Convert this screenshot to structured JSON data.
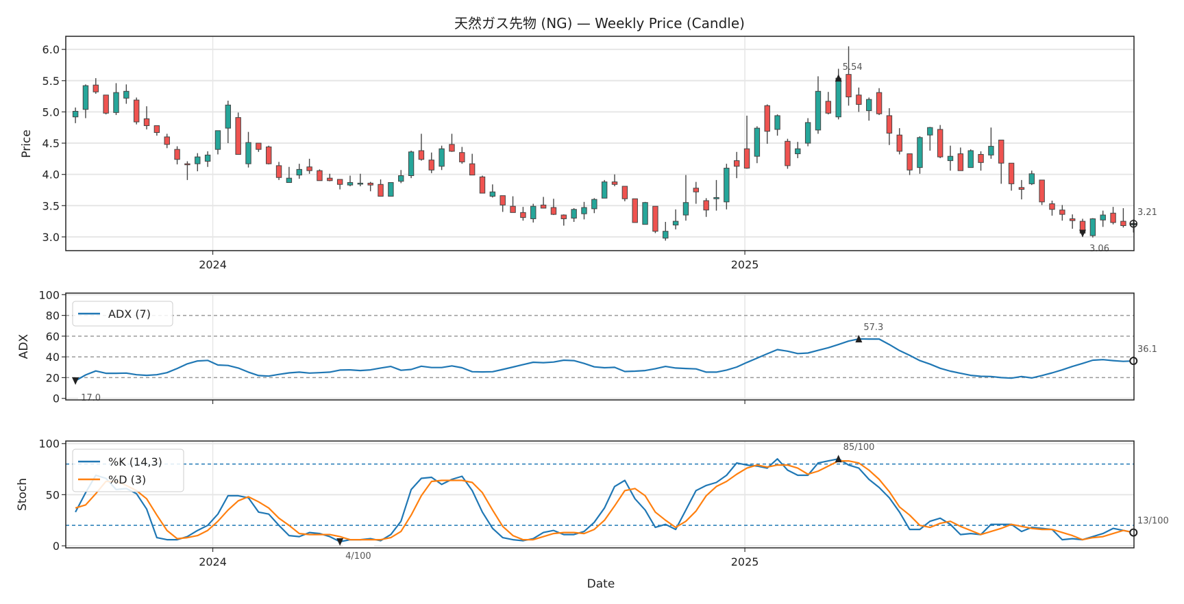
{
  "chart_data": [
    {
      "type": "candlestick",
      "title": "天然ガス先物 (NG) — Weekly Price (Candle)",
      "ylabel": "Price",
      "xlabel": "",
      "ylim": [
        2.78,
        6.21
      ],
      "yticks": [
        "3.0",
        "3.5",
        "4.0",
        "4.5",
        "5.0",
        "5.5",
        "6.0"
      ],
      "ytick_values": [
        3.0,
        3.5,
        4.0,
        4.5,
        5.0,
        5.5,
        6.0
      ],
      "xticks": [
        {
          "label": "2024",
          "index": 13.5
        },
        {
          "label": "2025",
          "index": 65.8
        }
      ],
      "grid": true,
      "colors": {
        "up": "#26a69a",
        "down": "#ef5350",
        "edge": "#444444"
      },
      "ohlc": [
        [
          4.92,
          5.07,
          4.82,
          5.01
        ],
        [
          5.04,
          5.44,
          4.9,
          5.42
        ],
        [
          5.43,
          5.54,
          5.29,
          5.32
        ],
        [
          5.27,
          5.27,
          4.96,
          4.98
        ],
        [
          4.99,
          5.46,
          4.95,
          5.31
        ],
        [
          5.22,
          5.44,
          5.13,
          5.33
        ],
        [
          5.19,
          5.23,
          4.8,
          4.84
        ],
        [
          4.89,
          5.09,
          4.72,
          4.78
        ],
        [
          4.78,
          4.78,
          4.62,
          4.67
        ],
        [
          4.6,
          4.65,
          4.42,
          4.48
        ],
        [
          4.4,
          4.45,
          4.16,
          4.24
        ],
        [
          4.17,
          4.21,
          3.91,
          4.16
        ],
        [
          4.17,
          4.34,
          4.05,
          4.28
        ],
        [
          4.21,
          4.37,
          4.12,
          4.31
        ],
        [
          4.4,
          4.7,
          4.32,
          4.7
        ],
        [
          4.74,
          5.18,
          4.5,
          5.11
        ],
        [
          4.91,
          4.99,
          4.32,
          4.32
        ],
        [
          4.17,
          4.68,
          4.11,
          4.51
        ],
        [
          4.5,
          4.5,
          4.36,
          4.4
        ],
        [
          4.44,
          4.46,
          4.16,
          4.17
        ],
        [
          4.14,
          4.2,
          3.91,
          3.95
        ],
        [
          3.87,
          4.12,
          3.87,
          3.94
        ],
        [
          3.99,
          4.17,
          3.93,
          4.08
        ],
        [
          4.12,
          4.25,
          4.01,
          4.06
        ],
        [
          4.06,
          4.08,
          3.9,
          3.9
        ],
        [
          3.94,
          4.01,
          3.89,
          3.9
        ],
        [
          3.92,
          3.92,
          3.76,
          3.84
        ],
        [
          3.83,
          3.98,
          3.81,
          3.87
        ],
        [
          3.85,
          4.01,
          3.81,
          3.86
        ],
        [
          3.86,
          3.88,
          3.73,
          3.83
        ],
        [
          3.84,
          3.92,
          3.65,
          3.65
        ],
        [
          3.65,
          3.87,
          3.65,
          3.87
        ],
        [
          3.89,
          4.07,
          3.86,
          3.98
        ],
        [
          3.98,
          4.38,
          3.94,
          4.36
        ],
        [
          4.38,
          4.65,
          4.22,
          4.24
        ],
        [
          4.23,
          4.35,
          4.02,
          4.07
        ],
        [
          4.13,
          4.46,
          4.07,
          4.41
        ],
        [
          4.48,
          4.65,
          4.36,
          4.37
        ],
        [
          4.35,
          4.44,
          4.17,
          4.2
        ],
        [
          4.17,
          4.33,
          3.99,
          3.99
        ],
        [
          3.96,
          3.98,
          3.7,
          3.7
        ],
        [
          3.65,
          3.84,
          3.63,
          3.72
        ],
        [
          3.66,
          3.66,
          3.4,
          3.51
        ],
        [
          3.49,
          3.65,
          3.39,
          3.39
        ],
        [
          3.39,
          3.48,
          3.26,
          3.31
        ],
        [
          3.29,
          3.53,
          3.23,
          3.49
        ],
        [
          3.51,
          3.64,
          3.46,
          3.46
        ],
        [
          3.47,
          3.61,
          3.35,
          3.36
        ],
        [
          3.35,
          3.36,
          3.18,
          3.29
        ],
        [
          3.3,
          3.46,
          3.24,
          3.44
        ],
        [
          3.37,
          3.56,
          3.28,
          3.47
        ],
        [
          3.45,
          3.62,
          3.38,
          3.6
        ],
        [
          3.62,
          3.91,
          3.62,
          3.88
        ],
        [
          3.88,
          4.0,
          3.81,
          3.84
        ],
        [
          3.81,
          3.81,
          3.57,
          3.61
        ],
        [
          3.61,
          3.61,
          3.23,
          3.23
        ],
        [
          3.2,
          3.56,
          3.2,
          3.55
        ],
        [
          3.49,
          3.49,
          3.06,
          3.09
        ],
        [
          2.98,
          3.24,
          2.94,
          3.09
        ],
        [
          3.19,
          3.44,
          3.12,
          3.25
        ],
        [
          3.35,
          3.99,
          3.26,
          3.55
        ],
        [
          3.78,
          3.88,
          3.53,
          3.72
        ],
        [
          3.58,
          3.62,
          3.32,
          3.43
        ],
        [
          3.61,
          3.91,
          3.42,
          3.63
        ],
        [
          3.56,
          4.17,
          3.44,
          4.1
        ],
        [
          4.22,
          4.36,
          3.94,
          4.13
        ],
        [
          4.41,
          4.94,
          4.09,
          4.1
        ],
        [
          4.29,
          4.77,
          4.18,
          4.74
        ],
        [
          5.1,
          5.12,
          4.49,
          4.69
        ],
        [
          4.72,
          4.96,
          4.62,
          4.94
        ],
        [
          4.53,
          4.57,
          4.09,
          4.14
        ],
        [
          4.33,
          4.52,
          4.26,
          4.41
        ],
        [
          4.5,
          4.9,
          4.45,
          4.83
        ],
        [
          4.71,
          5.57,
          4.65,
          5.33
        ],
        [
          5.17,
          5.32,
          4.96,
          4.98
        ],
        [
          4.92,
          5.69,
          4.88,
          5.54
        ],
        [
          5.6,
          6.05,
          5.1,
          5.24
        ],
        [
          5.27,
          5.39,
          5.0,
          5.12
        ],
        [
          5.02,
          5.23,
          4.86,
          5.2
        ],
        [
          5.31,
          5.38,
          4.95,
          4.97
        ],
        [
          4.94,
          5.06,
          4.47,
          4.66
        ],
        [
          4.63,
          4.74,
          4.32,
          4.37
        ],
        [
          4.33,
          4.33,
          3.99,
          4.07
        ],
        [
          4.11,
          4.61,
          4.01,
          4.59
        ],
        [
          4.63,
          4.76,
          4.38,
          4.75
        ],
        [
          4.72,
          4.79,
          4.26,
          4.28
        ],
        [
          4.22,
          4.46,
          4.06,
          4.29
        ],
        [
          4.33,
          4.43,
          4.06,
          4.06
        ],
        [
          4.11,
          4.4,
          4.11,
          4.38
        ],
        [
          4.32,
          4.37,
          4.06,
          4.19
        ],
        [
          4.31,
          4.75,
          4.25,
          4.45
        ],
        [
          4.55,
          4.55,
          3.85,
          4.18
        ],
        [
          4.18,
          4.18,
          3.74,
          3.85
        ],
        [
          3.79,
          3.91,
          3.6,
          3.76
        ],
        [
          3.85,
          4.06,
          3.83,
          4.01
        ],
        [
          3.91,
          3.91,
          3.51,
          3.56
        ],
        [
          3.53,
          3.58,
          3.34,
          3.44
        ],
        [
          3.43,
          3.51,
          3.26,
          3.36
        ],
        [
          3.29,
          3.36,
          3.13,
          3.26
        ],
        [
          3.25,
          3.29,
          3.0,
          3.06
        ],
        [
          3.02,
          3.3,
          2.99,
          3.29
        ],
        [
          3.27,
          3.42,
          3.16,
          3.35
        ],
        [
          3.38,
          3.48,
          3.2,
          3.23
        ],
        [
          3.25,
          3.46,
          3.15,
          3.18
        ],
        [
          3.2,
          3.28,
          3.07,
          3.21
        ]
      ],
      "annotations": [
        {
          "kind": "max",
          "index": 75,
          "value": 5.54,
          "label": "5.54"
        },
        {
          "kind": "min",
          "index": 99,
          "value": 3.06,
          "label": "3.06"
        },
        {
          "kind": "last",
          "index": 104,
          "value": 3.21,
          "label": "3.21"
        }
      ]
    },
    {
      "type": "line",
      "ylabel": "ADX",
      "ylim": [
        -1.5,
        101.5
      ],
      "yticks": [
        "0",
        "20",
        "40",
        "60",
        "80",
        "100"
      ],
      "ytick_values": [
        0,
        20,
        40,
        60,
        80,
        100
      ],
      "reference_lines": [
        20,
        40,
        60,
        80
      ],
      "legend": "top-left",
      "series": [
        {
          "name": "ADX (7)",
          "color": "#1f77b4",
          "values": [
            17.0,
            22.6,
            26.4,
            24.2,
            24.2,
            24.4,
            22.8,
            22.2,
            22.8,
            24.8,
            28.8,
            33.3,
            36.1,
            36.6,
            32.2,
            31.7,
            29.3,
            25.3,
            22.0,
            21.5,
            23.1,
            24.6,
            25.3,
            24.4,
            24.8,
            25.3,
            27.3,
            27.5,
            26.8,
            27.5,
            29.3,
            30.8,
            27.1,
            27.9,
            31.0,
            29.7,
            29.7,
            31.3,
            29.5,
            25.7,
            25.5,
            25.7,
            27.9,
            30.2,
            32.6,
            34.8,
            34.4,
            35.0,
            36.8,
            36.4,
            33.7,
            30.4,
            29.5,
            29.9,
            25.9,
            26.2,
            26.8,
            28.6,
            30.8,
            29.3,
            28.8,
            28.4,
            25.3,
            25.3,
            27.3,
            30.2,
            34.6,
            38.8,
            43.0,
            47.0,
            45.5,
            43.2,
            43.7,
            46.3,
            48.8,
            51.9,
            55.2,
            57.3,
            57.2,
            57.2,
            51.9,
            46.1,
            41.5,
            36.4,
            33.0,
            29.0,
            26.2,
            24.2,
            22.2,
            21.3,
            21.1,
            20.0,
            19.5,
            21.1,
            19.7,
            22.0,
            24.6,
            27.5,
            30.8,
            33.7,
            36.8,
            37.3,
            36.4,
            35.7,
            36.1
          ]
        }
      ],
      "annotations": [
        {
          "kind": "min",
          "index": 0,
          "value": 17.0,
          "label": "17.0"
        },
        {
          "kind": "max",
          "index": 77,
          "value": 57.3,
          "label": "57.3"
        },
        {
          "kind": "last",
          "index": 104,
          "value": 36.1,
          "label": "36.1"
        }
      ]
    },
    {
      "type": "line",
      "ylabel": "Stoch",
      "xlabel": "Date",
      "ylim": [
        -2,
        102.5
      ],
      "yticks": [
        "0",
        "50",
        "100"
      ],
      "ytick_values": [
        0,
        50,
        100
      ],
      "xticks": [
        {
          "label": "2024",
          "index": 13.5
        },
        {
          "label": "2025",
          "index": 65.8
        }
      ],
      "reference_lines": [
        20,
        80
      ],
      "legend": "top-left",
      "series": [
        {
          "name": "%K (14,3)",
          "color": "#1f77b4",
          "values": [
            33,
            52,
            69,
            66,
            55,
            56,
            51,
            36,
            8,
            6,
            6,
            9,
            15,
            20,
            31,
            49,
            49,
            47,
            33,
            31,
            20,
            10,
            9,
            13,
            12,
            9,
            4,
            6,
            6,
            7,
            5,
            11,
            24,
            55,
            66,
            67,
            60,
            65,
            68,
            54,
            33,
            17,
            8,
            6,
            5,
            7,
            13,
            15,
            11,
            11,
            14,
            23,
            37,
            58,
            64,
            46,
            35,
            18,
            21,
            16,
            35,
            54,
            59,
            62,
            69,
            81,
            79,
            78,
            76,
            85,
            74,
            69,
            69,
            81,
            83,
            85,
            79,
            76,
            65,
            57,
            47,
            33,
            16,
            16,
            24,
            27,
            21,
            11,
            12,
            11,
            21,
            21,
            21,
            14,
            18,
            17,
            16,
            6,
            7,
            6,
            9,
            12,
            17,
            15,
            13
          ]
        },
        {
          "name": "%D (3)",
          "color": "#ff7f0e",
          "values": [
            37,
            40,
            51,
            63,
            63,
            59,
            54,
            46,
            30,
            15,
            7,
            8,
            10,
            15,
            24,
            35,
            44,
            48,
            43,
            37,
            27,
            20,
            12,
            11,
            11,
            11,
            9,
            6,
            6,
            6,
            6,
            8,
            14,
            30,
            49,
            63,
            64,
            64,
            64,
            62,
            52,
            35,
            19,
            10,
            6,
            6,
            9,
            12,
            13,
            13,
            12,
            16,
            25,
            39,
            54,
            56,
            49,
            33,
            25,
            18,
            24,
            34,
            49,
            58,
            63,
            70,
            76,
            79,
            77,
            79,
            79,
            76,
            70,
            73,
            78,
            83,
            83,
            81,
            74,
            65,
            53,
            38,
            30,
            20,
            18,
            22,
            24,
            19,
            15,
            11,
            14,
            17,
            21,
            19,
            17,
            16,
            16,
            13,
            10,
            6,
            8,
            9,
            12,
            15,
            13
          ]
        }
      ],
      "annotations": [
        {
          "kind": "min",
          "index": 26,
          "value": 4,
          "label": "4/100"
        },
        {
          "kind": "max",
          "index": 75,
          "value": 85,
          "label": "85/100"
        },
        {
          "kind": "last",
          "index": 104,
          "value": 13,
          "label": "13/100"
        }
      ]
    }
  ]
}
